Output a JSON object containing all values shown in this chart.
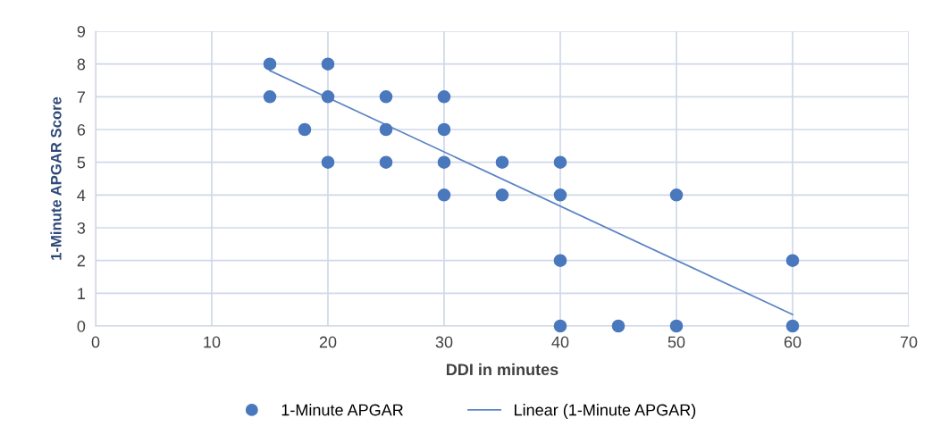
{
  "chart_data": {
    "type": "scatter",
    "xlabel": "DDI in minutes",
    "ylabel": "1-Minute APGAR Score",
    "xlim": [
      0,
      70
    ],
    "xticks": [
      0,
      10,
      20,
      30,
      40,
      50,
      60,
      70
    ],
    "ylim": [
      0,
      9
    ],
    "yticks": [
      0,
      1,
      2,
      3,
      4,
      5,
      6,
      7,
      8,
      9
    ],
    "grid": true,
    "legend": "bottom",
    "series": [
      {
        "name": "1-Minute APGAR",
        "color": "#4a78bd",
        "marker": "circle",
        "x": [
          15,
          15,
          20,
          20,
          18,
          20,
          25,
          25,
          25,
          30,
          30,
          30,
          30,
          35,
          35,
          40,
          40,
          40,
          40,
          45,
          50,
          50,
          60,
          60
        ],
        "values": [
          8,
          7,
          8,
          7,
          6,
          5,
          7,
          6,
          5,
          7,
          6,
          5,
          4,
          5,
          4,
          5,
          4,
          2,
          0,
          0,
          4,
          0,
          2,
          0
        ]
      },
      {
        "name": "Linear (1-Minute APGAR)",
        "type": "line",
        "color": "#5b84c4",
        "line_style": "solid",
        "marker": "none",
        "x": [
          15,
          60
        ],
        "values": [
          7.8,
          0.35
        ]
      }
    ]
  }
}
